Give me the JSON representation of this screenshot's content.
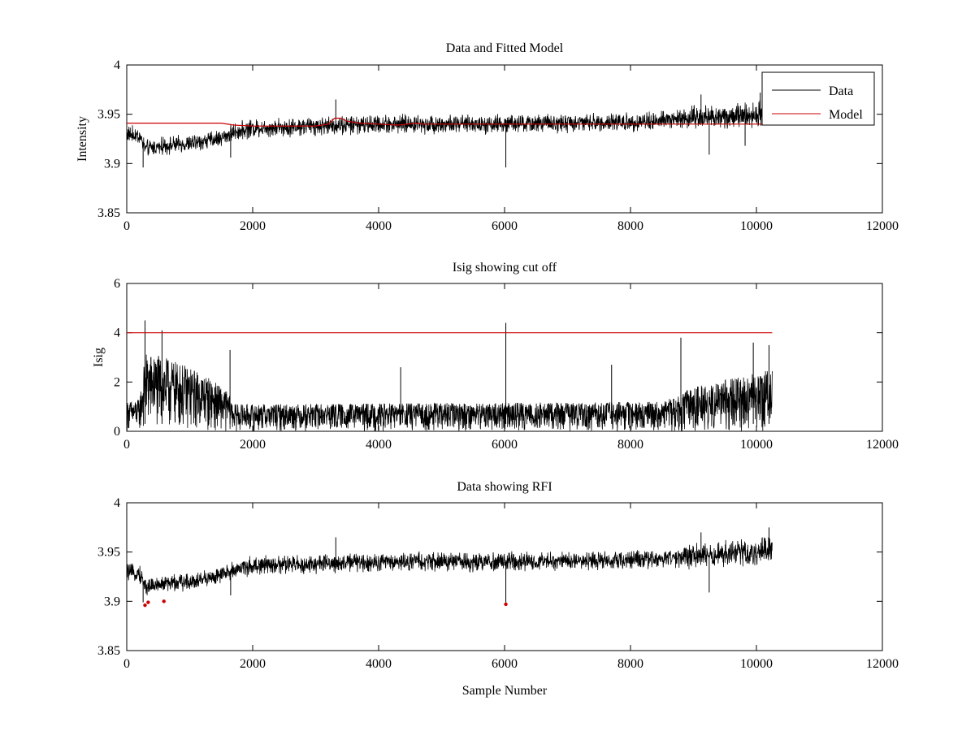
{
  "chart_data": [
    {
      "type": "line",
      "title": "Data and Fitted Model",
      "xlabel": "",
      "ylabel": "Intensity",
      "xlim": [
        0,
        12000
      ],
      "ylim": [
        3.85,
        4.0
      ],
      "xticks": [
        "0",
        "2000",
        "4000",
        "6000",
        "8000",
        "10000",
        "12000"
      ],
      "yticks": [
        "3.85",
        "3.9",
        "3.95",
        "4"
      ],
      "legend": {
        "position": "top-right",
        "entries": [
          "Data",
          "Model"
        ]
      },
      "series": [
        {
          "name": "Data",
          "color": "#000000",
          "x_range": [
            0,
            10250
          ],
          "trend": [
            [
              0,
              3.93
            ],
            [
              200,
              3.928
            ],
            [
              300,
              3.915
            ],
            [
              600,
              3.918
            ],
            [
              1000,
              3.92
            ],
            [
              1500,
              3.926
            ],
            [
              1700,
              3.932
            ],
            [
              2000,
              3.936
            ],
            [
              3000,
              3.938
            ],
            [
              4000,
              3.94
            ],
            [
              6000,
              3.94
            ],
            [
              8000,
              3.942
            ],
            [
              9000,
              3.946
            ],
            [
              10000,
              3.95
            ],
            [
              10250,
              3.952
            ]
          ],
          "noise_amplitude": [
            [
              0,
              0.01
            ],
            [
              1500,
              0.01
            ],
            [
              2000,
              0.011
            ],
            [
              8500,
              0.011
            ],
            [
              9000,
              0.015
            ],
            [
              10250,
              0.014
            ]
          ],
          "dips": [
            [
              260,
              3.896
            ],
            [
              1650,
              3.906
            ],
            [
              6020,
              3.896
            ],
            [
              9250,
              3.909
            ],
            [
              9820,
              3.918
            ]
          ],
          "spikes": [
            [
              3320,
              3.965
            ],
            [
              9120,
              3.97
            ],
            [
              10060,
              3.972
            ]
          ]
        },
        {
          "name": "Model",
          "color": "#cc0000",
          "x": [
            0,
            1500,
            1700,
            2000,
            3000,
            3200,
            3300,
            3400,
            3500,
            3700,
            4000,
            4300,
            4600,
            4700,
            5000,
            6000,
            8000,
            10250
          ],
          "y": [
            3.941,
            3.941,
            3.939,
            3.938,
            3.938,
            3.94,
            3.946,
            3.946,
            3.943,
            3.941,
            3.94,
            3.939,
            3.941,
            3.94,
            3.94,
            3.94,
            3.94,
            3.94
          ]
        }
      ]
    },
    {
      "type": "line",
      "title": "Isig showing cut off",
      "xlabel": "",
      "ylabel": "Isig",
      "xlim": [
        0,
        12000
      ],
      "ylim": [
        0,
        6
      ],
      "xticks": [
        "0",
        "2000",
        "4000",
        "6000",
        "8000",
        "10000",
        "12000"
      ],
      "yticks": [
        "0",
        "2",
        "4",
        "6"
      ],
      "series": [
        {
          "name": "Isig",
          "color": "#000000",
          "x_range": [
            0,
            10250
          ],
          "envelope": [
            [
              0,
              1.2
            ],
            [
              200,
              1.3
            ],
            [
              300,
              3.2
            ],
            [
              600,
              3.0
            ],
            [
              1000,
              2.6
            ],
            [
              1300,
              2.2
            ],
            [
              1600,
              1.6
            ],
            [
              1700,
              1.1
            ],
            [
              2000,
              1.1
            ],
            [
              8500,
              1.2
            ],
            [
              9000,
              1.8
            ],
            [
              10250,
              2.5
            ]
          ],
          "spikes": [
            [
              290,
              4.5
            ],
            [
              560,
              4.1
            ],
            [
              1640,
              3.3
            ],
            [
              4350,
              2.6
            ],
            [
              6020,
              4.4
            ],
            [
              7700,
              2.7
            ],
            [
              8800,
              3.8
            ],
            [
              9950,
              3.6
            ],
            [
              10200,
              3.5
            ]
          ]
        },
        {
          "name": "Cut off",
          "color": "#cc0000",
          "x": [
            0,
            10250
          ],
          "y": [
            4,
            4
          ]
        }
      ]
    },
    {
      "type": "line",
      "title": "Data showing RFI",
      "xlabel": "Sample Number",
      "ylabel": "",
      "xlim": [
        0,
        12000
      ],
      "ylim": [
        3.85,
        4.0
      ],
      "xticks": [
        "0",
        "2000",
        "4000",
        "6000",
        "8000",
        "10000",
        "12000"
      ],
      "yticks": [
        "3.85",
        "3.9",
        "3.95",
        "4"
      ],
      "series": [
        {
          "name": "Data",
          "color": "#000000",
          "x_range": [
            0,
            10250
          ],
          "trend": [
            [
              0,
              3.93
            ],
            [
              200,
              3.928
            ],
            [
              300,
              3.915
            ],
            [
              600,
              3.918
            ],
            [
              1000,
              3.92
            ],
            [
              1500,
              3.926
            ],
            [
              1700,
              3.932
            ],
            [
              2000,
              3.936
            ],
            [
              3000,
              3.938
            ],
            [
              4000,
              3.94
            ],
            [
              6000,
              3.94
            ],
            [
              8000,
              3.942
            ],
            [
              9000,
              3.946
            ],
            [
              10000,
              3.95
            ],
            [
              10250,
              3.955
            ]
          ],
          "noise_amplitude": [
            [
              0,
              0.01
            ],
            [
              1500,
              0.01
            ],
            [
              2000,
              0.011
            ],
            [
              8500,
              0.011
            ],
            [
              9000,
              0.015
            ],
            [
              10250,
              0.014
            ]
          ],
          "dips": [
            [
              260,
              3.899
            ],
            [
              1650,
              3.906
            ],
            [
              6020,
              3.899
            ],
            [
              9250,
              3.909
            ]
          ],
          "spikes": [
            [
              3320,
              3.965
            ],
            [
              9120,
              3.97
            ],
            [
              10200,
              3.975
            ]
          ]
        },
        {
          "name": "RFI",
          "color": "#cc0000",
          "marker": "point",
          "x": [
            290,
            340,
            590,
            6020
          ],
          "y": [
            3.896,
            3.899,
            3.9,
            3.897
          ]
        }
      ]
    }
  ]
}
